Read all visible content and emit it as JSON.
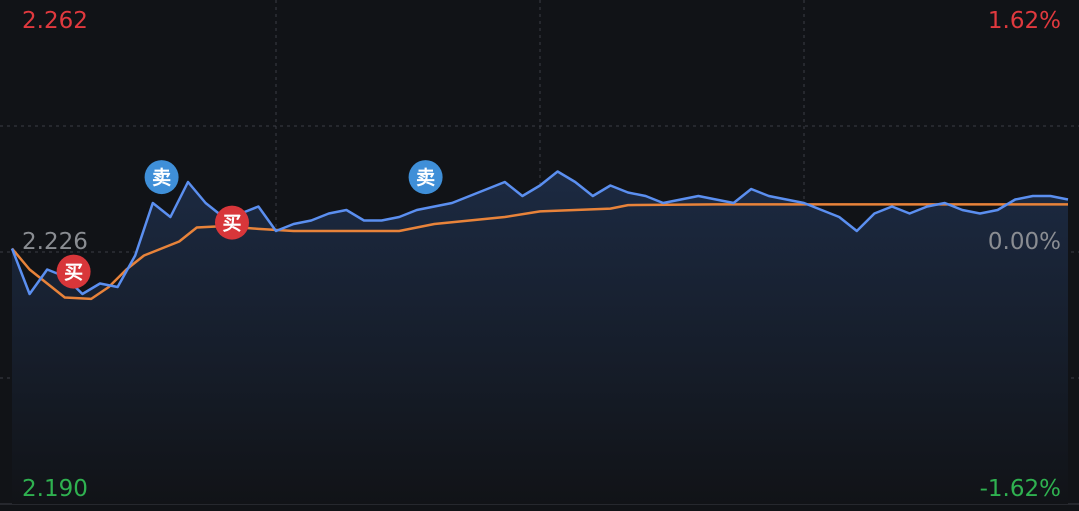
{
  "colors": {
    "background": "#111317",
    "grid": "#3b3e44",
    "price_line": "#5b8ff0",
    "avg_line": "#e8833a",
    "fill_top": "#1c2a42",
    "up": "#e0393e",
    "down": "#2fb150",
    "neutral": "#8a8d92",
    "buy_marker": "#d8363a",
    "sell_marker": "#3f8fd8"
  },
  "axis": {
    "price_max": "2.262",
    "price_mid": "2.226",
    "price_min": "2.190",
    "pct_max": "1.62%",
    "pct_mid": "0.00%",
    "pct_min": "-1.62%"
  },
  "chart_data": {
    "type": "line",
    "ylim": [
      2.19,
      2.262
    ],
    "reference_price": 2.226,
    "grid": true,
    "x_points": 241,
    "series": [
      {
        "key": "price",
        "color": "#5b8ff0",
        "points": [
          [
            0,
            2.2265
          ],
          [
            4,
            2.22
          ],
          [
            8,
            2.2235
          ],
          [
            12,
            2.2225
          ],
          [
            16,
            2.22
          ],
          [
            20,
            2.2215
          ],
          [
            24,
            2.221
          ],
          [
            28,
            2.2255
          ],
          [
            32,
            2.233
          ],
          [
            36,
            2.231
          ],
          [
            40,
            2.236
          ],
          [
            44,
            2.233
          ],
          [
            48,
            2.231
          ],
          [
            52,
            2.2315
          ],
          [
            56,
            2.2325
          ],
          [
            60,
            2.229
          ],
          [
            64,
            2.23
          ],
          [
            68,
            2.2305
          ],
          [
            72,
            2.2315
          ],
          [
            76,
            2.232
          ],
          [
            80,
            2.2305
          ],
          [
            84,
            2.2305
          ],
          [
            88,
            2.231
          ],
          [
            92,
            2.232
          ],
          [
            96,
            2.2325
          ],
          [
            100,
            2.233
          ],
          [
            104,
            2.234
          ],
          [
            108,
            2.235
          ],
          [
            112,
            2.236
          ],
          [
            116,
            2.234
          ],
          [
            120,
            2.2355
          ],
          [
            124,
            2.2375
          ],
          [
            128,
            2.236
          ],
          [
            132,
            2.234
          ],
          [
            136,
            2.2355
          ],
          [
            140,
            2.2345
          ],
          [
            144,
            2.234
          ],
          [
            148,
            2.233
          ],
          [
            152,
            2.2335
          ],
          [
            156,
            2.234
          ],
          [
            160,
            2.2335
          ],
          [
            164,
            2.233
          ],
          [
            168,
            2.235
          ],
          [
            172,
            2.234
          ],
          [
            176,
            2.2335
          ],
          [
            180,
            2.233
          ],
          [
            184,
            2.232
          ],
          [
            188,
            2.231
          ],
          [
            192,
            2.229
          ],
          [
            196,
            2.2315
          ],
          [
            200,
            2.2325
          ],
          [
            204,
            2.2315
          ],
          [
            208,
            2.2325
          ],
          [
            212,
            2.233
          ],
          [
            216,
            2.232
          ],
          [
            220,
            2.2315
          ],
          [
            224,
            2.232
          ],
          [
            228,
            2.2335
          ],
          [
            232,
            2.234
          ],
          [
            236,
            2.234
          ],
          [
            240,
            2.2335
          ]
        ]
      },
      {
        "key": "average",
        "color": "#e8833a",
        "points": [
          [
            0,
            2.2265
          ],
          [
            4,
            2.2235
          ],
          [
            8,
            2.2215
          ],
          [
            12,
            2.2195
          ],
          [
            18,
            2.2193
          ],
          [
            22,
            2.221
          ],
          [
            26,
            2.2235
          ],
          [
            30,
            2.2255
          ],
          [
            34,
            2.2265
          ],
          [
            38,
            2.2275
          ],
          [
            42,
            2.2295
          ],
          [
            48,
            2.2297
          ],
          [
            56,
            2.2293
          ],
          [
            64,
            2.229
          ],
          [
            72,
            2.229
          ],
          [
            80,
            2.229
          ],
          [
            88,
            2.229
          ],
          [
            92,
            2.2295
          ],
          [
            96,
            2.23
          ],
          [
            104,
            2.2305
          ],
          [
            112,
            2.231
          ],
          [
            120,
            2.2318
          ],
          [
            128,
            2.232
          ],
          [
            136,
            2.2322
          ],
          [
            140,
            2.2327
          ],
          [
            160,
            2.2328
          ],
          [
            180,
            2.2328
          ],
          [
            200,
            2.2328
          ],
          [
            220,
            2.2328
          ],
          [
            240,
            2.2328
          ]
        ]
      }
    ],
    "markers": [
      {
        "type": "buy",
        "label": "买",
        "x": 14,
        "y": 2.2232
      },
      {
        "type": "sell",
        "label": "卖",
        "x": 34,
        "y": 2.2367
      },
      {
        "type": "buy",
        "label": "买",
        "x": 50,
        "y": 2.2302
      },
      {
        "type": "sell",
        "label": "卖",
        "x": 94,
        "y": 2.2367
      }
    ]
  }
}
